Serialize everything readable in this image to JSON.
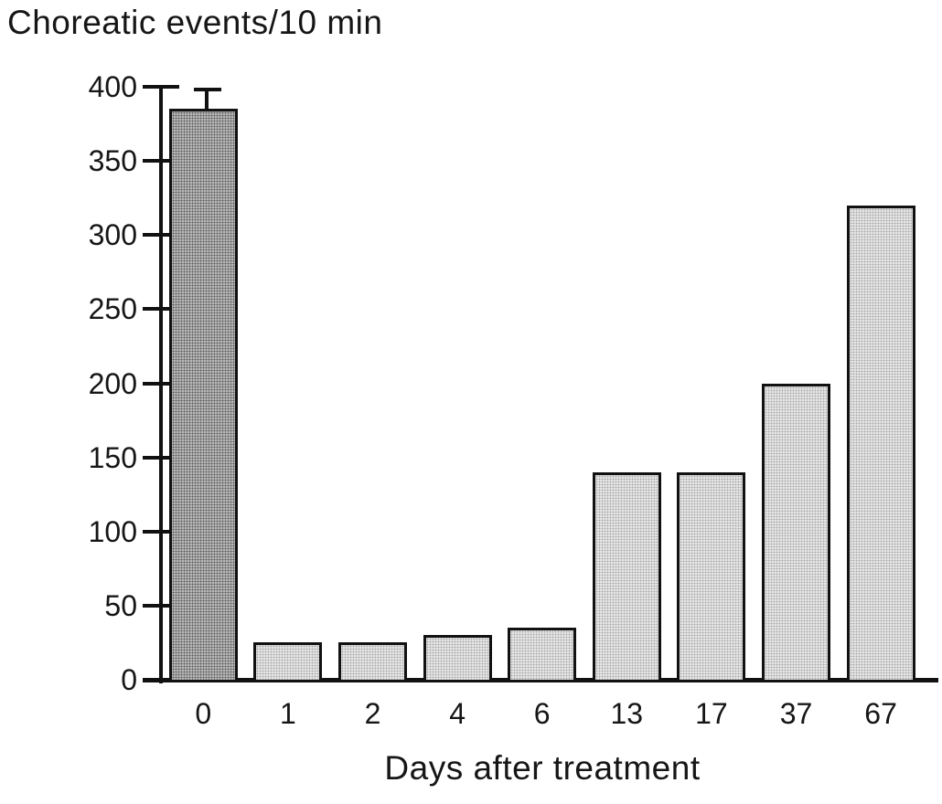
{
  "chart_data": {
    "type": "bar",
    "title": "Choreatic events/10 min",
    "xlabel": "Days after treatment",
    "categories": [
      "0",
      "1",
      "2",
      "4",
      "6",
      "13",
      "17",
      "37",
      "67"
    ],
    "values": [
      385,
      25,
      25,
      30,
      35,
      140,
      140,
      200,
      320
    ],
    "error_plus": [
      13,
      0,
      0,
      0,
      0,
      0,
      0,
      0,
      0
    ],
    "yticks": [
      0,
      50,
      100,
      150,
      200,
      250,
      300,
      350,
      400
    ],
    "ylim": [
      0,
      400
    ],
    "grid": false,
    "legend": null,
    "colors": {
      "first_bar_fill": "#c7c7c7",
      "bar_fill": "#e6e6e6",
      "bar_border": "#111111",
      "axis": "#111111",
      "text": "#161616",
      "background": "#ffffff"
    }
  }
}
